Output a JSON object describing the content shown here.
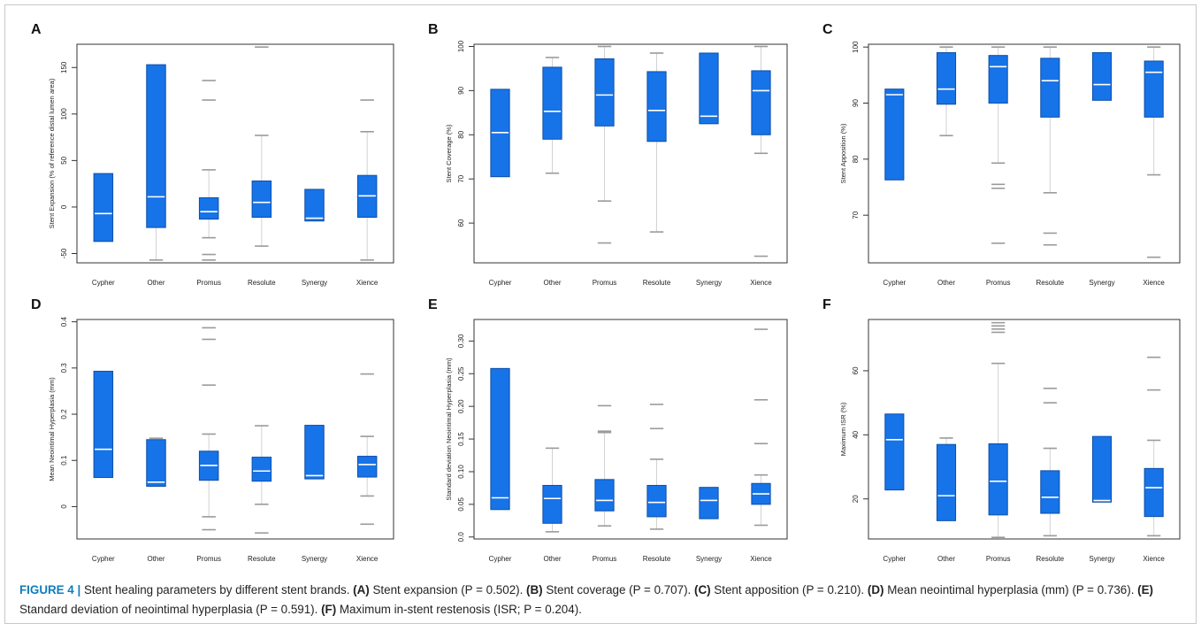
{
  "chart_data": [
    {
      "type": "box",
      "panel": "A",
      "ylabel": "Stent Expansion (% of reference distal lumen area)",
      "categories": [
        "Cypher",
        "Other",
        "Promus",
        "Resolute",
        "Synergy",
        "Xience"
      ],
      "ylim": [
        -60,
        175
      ],
      "yticks": [
        -50,
        0,
        50,
        100,
        150
      ],
      "boxes": [
        {
          "q1": -37,
          "median": -7,
          "q3": 36,
          "whisker_low": null,
          "whisker_high": null,
          "outliers": []
        },
        {
          "q1": -22,
          "median": 11,
          "q3": 153,
          "whisker_low": -57,
          "whisker_high": null,
          "outliers": []
        },
        {
          "q1": -13,
          "median": -5,
          "q3": 10,
          "whisker_low": -33,
          "whisker_high": 40,
          "outliers": [
            -57,
            -51,
            115,
            136
          ]
        },
        {
          "q1": -11,
          "median": 5,
          "q3": 28,
          "whisker_low": -42,
          "whisker_high": 77,
          "outliers": [
            172
          ]
        },
        {
          "q1": -15,
          "median": -12,
          "q3": 19,
          "whisker_low": null,
          "whisker_high": null,
          "outliers": []
        },
        {
          "q1": -11,
          "median": 12,
          "q3": 34,
          "whisker_low": -57,
          "whisker_high": 81,
          "outliers": [
            115
          ]
        }
      ]
    },
    {
      "type": "box",
      "panel": "B",
      "ylabel": "Stent Coverage (%)",
      "categories": [
        "Cypher",
        "Other",
        "Promus",
        "Resolute",
        "Synergy",
        "Xience"
      ],
      "ylim": [
        51,
        100.5
      ],
      "yticks": [
        60,
        70,
        80,
        90,
        100
      ],
      "boxes": [
        {
          "q1": 70.5,
          "median": 80.5,
          "q3": 90.3,
          "whisker_low": null,
          "whisker_high": null,
          "outliers": []
        },
        {
          "q1": 79,
          "median": 85.3,
          "q3": 95.3,
          "whisker_low": 71.3,
          "whisker_high": 97.5,
          "outliers": []
        },
        {
          "q1": 82,
          "median": 89,
          "q3": 97.2,
          "whisker_low": 65,
          "whisker_high": 100,
          "outliers": [
            55.5
          ]
        },
        {
          "q1": 78.5,
          "median": 85.5,
          "q3": 94.3,
          "whisker_low": 58,
          "whisker_high": 98.5,
          "outliers": []
        },
        {
          "q1": 82.5,
          "median": 84.2,
          "q3": 98.5,
          "whisker_low": null,
          "whisker_high": null,
          "outliers": []
        },
        {
          "q1": 80,
          "median": 90,
          "q3": 94.5,
          "whisker_low": 75.8,
          "whisker_high": 100,
          "outliers": [
            52.5
          ]
        }
      ]
    },
    {
      "type": "box",
      "panel": "C",
      "ylabel": "Stent Apposition (%)",
      "categories": [
        "Cypher",
        "Other",
        "Promus",
        "Resolute",
        "Synergy",
        "Xience"
      ],
      "ylim": [
        61.5,
        100.5
      ],
      "yticks": [
        70,
        80,
        90,
        100
      ],
      "boxes": [
        {
          "q1": 76.3,
          "median": 91.5,
          "q3": 92.5,
          "whisker_low": null,
          "whisker_high": null,
          "outliers": []
        },
        {
          "q1": 89.8,
          "median": 92.5,
          "q3": 99,
          "whisker_low": 84.2,
          "whisker_high": 100,
          "outliers": []
        },
        {
          "q1": 90,
          "median": 96.5,
          "q3": 98.5,
          "whisker_low": 79.3,
          "whisker_high": 100,
          "outliers": [
            65,
            74.8,
            75.5
          ]
        },
        {
          "q1": 87.5,
          "median": 94,
          "q3": 98,
          "whisker_low": 74,
          "whisker_high": 100,
          "outliers": [
            64.7,
            66.8
          ]
        },
        {
          "q1": 90.5,
          "median": 93.3,
          "q3": 99,
          "whisker_low": null,
          "whisker_high": null,
          "outliers": []
        },
        {
          "q1": 87.5,
          "median": 95.5,
          "q3": 97.5,
          "whisker_low": 77.2,
          "whisker_high": 100,
          "outliers": [
            62.5
          ]
        }
      ]
    },
    {
      "type": "box",
      "panel": "D",
      "ylabel": "Mean Neointimal Hyperplasia (mm)",
      "categories": [
        "Cypher",
        "Other",
        "Promus",
        "Resolute",
        "Synergy",
        "Xience"
      ],
      "ylim": [
        -0.07,
        0.405
      ],
      "yticks": [
        0.0,
        0.1,
        0.2,
        0.3,
        0.4
      ],
      "boxes": [
        {
          "q1": 0.063,
          "median": 0.124,
          "q3": 0.293,
          "whisker_low": null,
          "whisker_high": null,
          "outliers": []
        },
        {
          "q1": 0.044,
          "median": 0.053,
          "q3": 0.145,
          "whisker_low": null,
          "whisker_high": 0.148,
          "outliers": []
        },
        {
          "q1": 0.057,
          "median": 0.089,
          "q3": 0.12,
          "whisker_low": -0.022,
          "whisker_high": 0.157,
          "outliers": [
            -0.05,
            0.263,
            0.362,
            0.387
          ]
        },
        {
          "q1": 0.055,
          "median": 0.077,
          "q3": 0.107,
          "whisker_low": 0.005,
          "whisker_high": 0.175,
          "outliers": [
            -0.057
          ]
        },
        {
          "q1": 0.06,
          "median": 0.067,
          "q3": 0.176,
          "whisker_low": null,
          "whisker_high": null,
          "outliers": []
        },
        {
          "q1": 0.064,
          "median": 0.091,
          "q3": 0.109,
          "whisker_low": 0.023,
          "whisker_high": 0.152,
          "outliers": [
            -0.038,
            0.287
          ]
        }
      ]
    },
    {
      "type": "box",
      "panel": "E",
      "ylabel": "Standard deviation Neointimal Hyperplasia (mm)",
      "categories": [
        "Cypher",
        "Other",
        "Promus",
        "Resolute",
        "Synergy",
        "Xience"
      ],
      "ylim": [
        -0.003,
        0.333
      ],
      "yticks": [
        0.0,
        0.05,
        0.1,
        0.15,
        0.2,
        0.25,
        0.3
      ],
      "yticklabels": [
        "0.0",
        "0.05",
        "0.10",
        "0.15",
        "0.20",
        "0.25",
        "0.30"
      ],
      "boxes": [
        {
          "q1": 0.042,
          "median": 0.06,
          "q3": 0.258,
          "whisker_low": null,
          "whisker_high": null,
          "outliers": []
        },
        {
          "q1": 0.021,
          "median": 0.059,
          "q3": 0.079,
          "whisker_low": 0.008,
          "whisker_high": 0.136,
          "outliers": []
        },
        {
          "q1": 0.04,
          "median": 0.056,
          "q3": 0.088,
          "whisker_low": 0.017,
          "whisker_high": 0.16,
          "outliers": [
            0.162,
            0.201
          ]
        },
        {
          "q1": 0.031,
          "median": 0.053,
          "q3": 0.079,
          "whisker_low": 0.012,
          "whisker_high": 0.119,
          "outliers": [
            0.166,
            0.203
          ]
        },
        {
          "q1": 0.028,
          "median": 0.056,
          "q3": 0.076,
          "whisker_low": null,
          "whisker_high": null,
          "outliers": []
        },
        {
          "q1": 0.05,
          "median": 0.066,
          "q3": 0.082,
          "whisker_low": 0.018,
          "whisker_high": 0.095,
          "outliers": [
            0.143,
            0.21,
            0.318
          ]
        }
      ]
    },
    {
      "type": "box",
      "panel": "F",
      "ylabel": "Maximum ISR (%)",
      "categories": [
        "Cypher",
        "Other",
        "Promus",
        "Resolute",
        "Synergy",
        "Xience"
      ],
      "ylim": [
        7.5,
        76
      ],
      "yticks": [
        20,
        40,
        60
      ],
      "boxes": [
        {
          "q1": 22.8,
          "median": 38.5,
          "q3": 46.5,
          "whisker_low": null,
          "whisker_high": null,
          "outliers": []
        },
        {
          "q1": 13.2,
          "median": 21,
          "q3": 37,
          "whisker_low": null,
          "whisker_high": 39,
          "outliers": []
        },
        {
          "q1": 15,
          "median": 25.5,
          "q3": 37.2,
          "whisker_low": 8,
          "whisker_high": 62.3,
          "outliers": [
            72,
            73,
            74,
            75
          ]
        },
        {
          "q1": 15.5,
          "median": 20.5,
          "q3": 28.8,
          "whisker_low": 8.5,
          "whisker_high": 35.8,
          "outliers": [
            50,
            54.5
          ]
        },
        {
          "q1": 19,
          "median": 19.5,
          "q3": 39.5,
          "whisker_low": null,
          "whisker_high": null,
          "outliers": []
        },
        {
          "q1": 14.5,
          "median": 23.5,
          "q3": 29.5,
          "whisker_low": 8.5,
          "whisker_high": 38.3,
          "outliers": [
            54,
            64.2
          ]
        }
      ]
    }
  ],
  "caption": {
    "label": "FIGURE 4 |",
    "text": " Stent healing parameters by different stent brands. ",
    "parts": [
      {
        "tag": "(A)",
        "text": " Stent expansion (P = 0.502). "
      },
      {
        "tag": "(B)",
        "text": " Stent coverage (P = 0.707). "
      },
      {
        "tag": "(C)",
        "text": " Stent apposition (P = 0.210). "
      },
      {
        "tag": "(D)",
        "text": " Mean neointimal hyperplasia (mm) (P = 0.736). "
      },
      {
        "tag": "(E)",
        "text": " Standard deviation of neointimal hyperplasia (P = 0.591). "
      },
      {
        "tag": "(F)",
        "text": " Maximum in-stent restenosis (ISR; P = 0.204)."
      }
    ]
  },
  "colors": {
    "box_fill": "#1773e8",
    "box_edge": "#0d4fa8",
    "median": "#ffffff",
    "whisker": "#d2d2d2",
    "outlier": "#9a9a9a",
    "axis": "#333333"
  }
}
